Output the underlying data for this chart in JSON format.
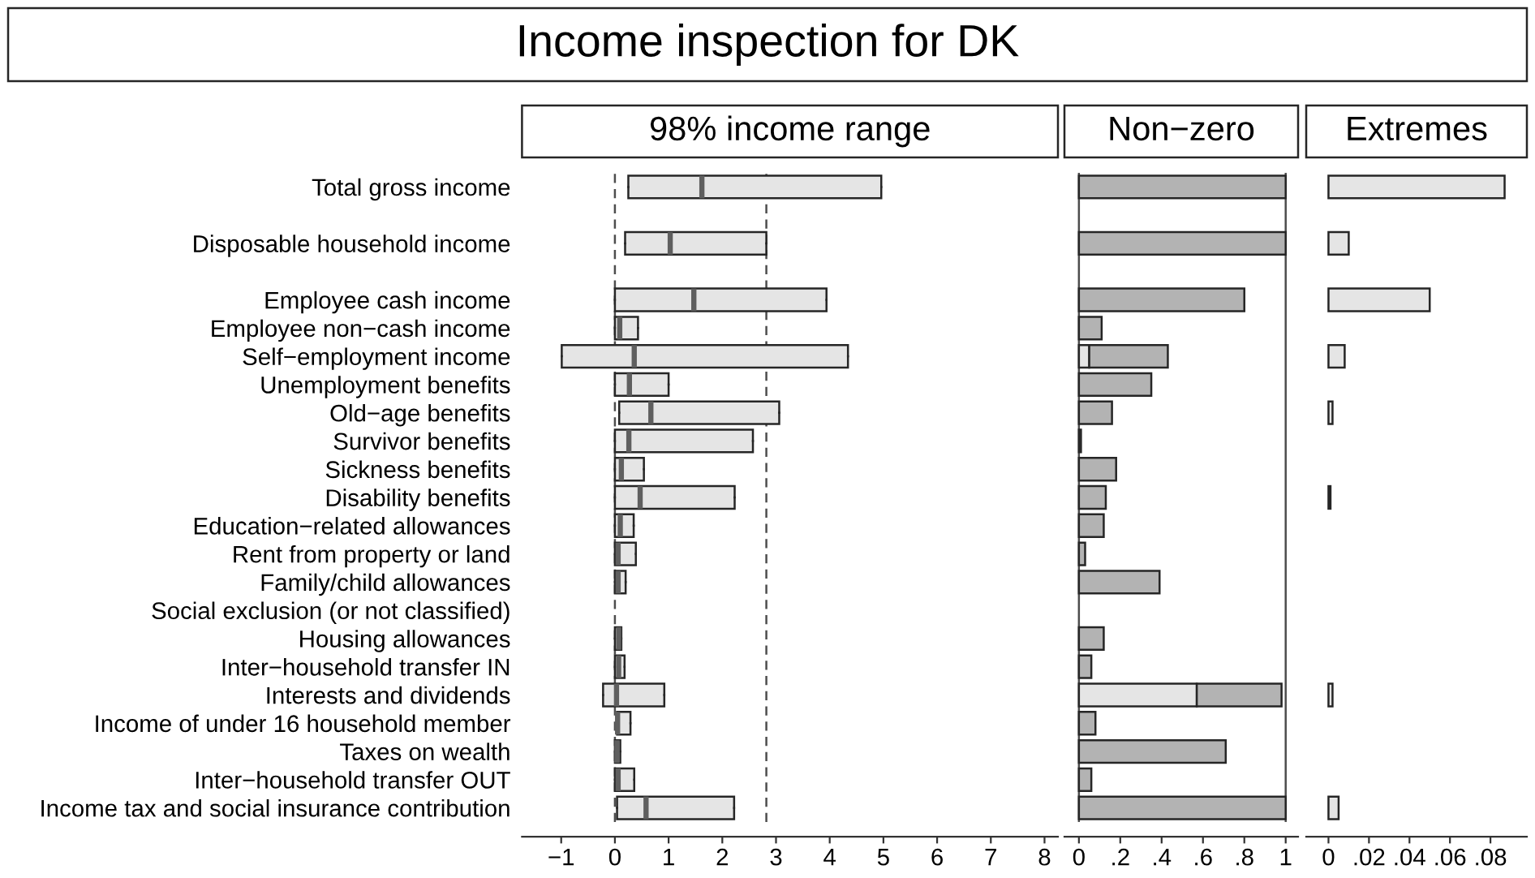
{
  "chart_data": [
    {
      "type": "box",
      "orientation": "horizontal",
      "title": "Income inspection for DK",
      "subtitle": "98% income range",
      "color": "#e5e5e5",
      "categories": [
        "Total gross income",
        null,
        "Disposable household income",
        null,
        "Employee cash income",
        "Employee non−cash income",
        "Self−employment income",
        "Unemployment benefits",
        "Old−age benefits",
        "Survivor benefits",
        "Sickness benefits",
        "Disability benefits",
        "Education−related allowances",
        "Rent from property or land",
        "Family/child allowances",
        "Social exclusion (or not classified)",
        "Housing allowances",
        "Inter−household transfer IN",
        "Interests and dividends",
        "Income of under 16 household member",
        "Taxes on wealth",
        "Inter−household transfer OUT",
        "Income tax and social insurance contribution"
      ],
      "boxes": [
        {
          "low": 0.25,
          "q1": 0.25,
          "median": 1.62,
          "q3": 4.96,
          "high": 4.96
        },
        null,
        {
          "low": 0.19,
          "q1": 0.19,
          "median": 1.03,
          "q3": 2.82,
          "high": 2.82
        },
        null,
        {
          "low": 0,
          "q1": 0,
          "median": 1.47,
          "q3": 3.94,
          "high": 3.94
        },
        {
          "low": 0,
          "q1": 0,
          "median": 0.09,
          "q3": 0.43,
          "high": 0.43
        },
        {
          "low": -0.99,
          "q1": -0.99,
          "median": 0.36,
          "q3": 4.34,
          "high": 4.34
        },
        {
          "low": 0,
          "q1": 0,
          "median": 0.27,
          "q3": 1.0,
          "high": 1.0
        },
        {
          "low": 0.08,
          "q1": 0.08,
          "median": 0.67,
          "q3": 3.06,
          "high": 3.06
        },
        {
          "low": 0,
          "q1": 0,
          "median": 0.26,
          "q3": 2.57,
          "high": 2.57
        },
        {
          "low": 0,
          "q1": 0,
          "median": 0.12,
          "q3": 0.54,
          "high": 0.54
        },
        {
          "low": 0,
          "q1": 0,
          "median": 0.47,
          "q3": 2.23,
          "high": 2.23
        },
        {
          "low": 0,
          "q1": 0,
          "median": 0.1,
          "q3": 0.35,
          "high": 0.35
        },
        {
          "low": 0,
          "q1": 0,
          "median": 0.06,
          "q3": 0.39,
          "high": 0.39
        },
        {
          "low": 0,
          "q1": 0,
          "median": 0.06,
          "q3": 0.2,
          "high": 0.2
        },
        null,
        {
          "low": 0,
          "q1": 0,
          "median": 0.07,
          "q3": 0.12,
          "high": 0.12
        },
        {
          "low": 0,
          "q1": 0,
          "median": 0.07,
          "q3": 0.18,
          "high": 0.18
        },
        {
          "low": -0.22,
          "q1": -0.22,
          "median": 0.03,
          "q3": 0.92,
          "high": 0.92
        },
        {
          "low": 0.04,
          "q1": 0.04,
          "median": 0.05,
          "q3": 0.29,
          "high": 0.29
        },
        {
          "low": 0,
          "q1": 0,
          "median": 0.04,
          "q3": 0.1,
          "high": 0.1
        },
        {
          "low": 0,
          "q1": 0,
          "median": 0.06,
          "q3": 0.36,
          "high": 0.36
        },
        {
          "low": 0.04,
          "q1": 0.04,
          "median": 0.58,
          "q3": 2.22,
          "high": 2.22
        }
      ],
      "ref_lines": [
        {
          "axis": "x",
          "value": 0,
          "line_style": "dashed",
          "color": "#4d4d4d"
        },
        {
          "axis": "x",
          "value": 2.82,
          "line_style": "dashed",
          "color": "#4d4d4d"
        }
      ],
      "xlim": [
        -1.73,
        8.25
      ],
      "xticks": [
        {
          "value": -1,
          "label": "−1"
        },
        0,
        1,
        2,
        3,
        4,
        5,
        6,
        7,
        8
      ]
    },
    {
      "type": "bar",
      "orientation": "horizontal",
      "stacked": true,
      "title": "Non−zero",
      "categories": [
        null,
        null,
        null,
        null,
        null,
        null,
        null,
        null,
        null,
        null,
        null,
        null,
        null,
        null,
        null,
        null,
        null,
        null,
        null,
        null,
        null,
        null,
        null
      ],
      "series": [
        {
          "color": "#e5e5e5",
          "values": [
            null,
            null,
            null,
            null,
            null,
            null,
            0.05,
            null,
            null,
            null,
            null,
            null,
            null,
            null,
            null,
            null,
            null,
            null,
            0.57,
            null,
            null,
            null,
            null
          ]
        },
        {
          "color": "#b3b3b3",
          "values": [
            1.0,
            null,
            1.0,
            null,
            0.8,
            0.11,
            0.38,
            0.35,
            0.16,
            0.01,
            0.18,
            0.13,
            0.12,
            0.03,
            0.39,
            null,
            0.12,
            0.06,
            0.41,
            0.08,
            0.71,
            0.06,
            1.0
          ]
        }
      ],
      "ref_lines": [
        {
          "axis": "x",
          "value": 0,
          "line_style": "solid",
          "color": "#4d4d4d"
        },
        {
          "axis": "x",
          "value": 1,
          "line_style": "solid",
          "color": "#4d4d4d"
        }
      ],
      "xlim": [
        -0.07,
        1.06
      ],
      "xticks": [
        0,
        {
          "value": 0.2,
          "label": ".2"
        },
        {
          "value": 0.4,
          "label": ".4"
        },
        {
          "value": 0.6,
          "label": ".6"
        },
        {
          "value": 0.8,
          "label": ".8"
        },
        1
      ]
    },
    {
      "type": "bar",
      "orientation": "horizontal",
      "title": "Extremes",
      "categories": [
        null,
        null,
        null,
        null,
        null,
        null,
        null,
        null,
        null,
        null,
        null,
        null,
        null,
        null,
        null,
        null,
        null,
        null,
        null,
        null,
        null,
        null,
        null
      ],
      "color": "#e5e5e5",
      "values": [
        0.087,
        null,
        0.01,
        null,
        0.05,
        null,
        0.008,
        null,
        0.002,
        null,
        null,
        0.001,
        null,
        null,
        null,
        null,
        null,
        null,
        0.002,
        null,
        null,
        null,
        0.005
      ],
      "xlim": [
        -0.011,
        0.098
      ],
      "xticks": [
        0,
        {
          "value": 0.02,
          "label": ".02"
        },
        {
          "value": 0.04,
          "label": ".04"
        },
        {
          "value": 0.06,
          "label": ".06"
        },
        {
          "value": 0.08,
          "label": ".08"
        }
      ]
    }
  ]
}
